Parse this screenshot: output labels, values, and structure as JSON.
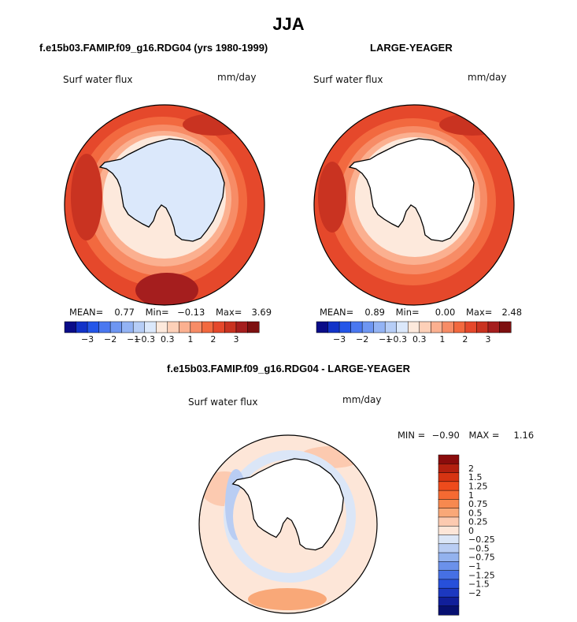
{
  "page": {
    "title": "JJA",
    "diff_title": "f.e15b03.FAMIP.f09_g16.RDG04 - LARGE-YEAGER"
  },
  "panels": [
    {
      "title": "f.e15b03.FAMIP.f09_g16.RDG04 (yrs 1980-1999)",
      "variable": "Surf water flux",
      "units": "mm/day",
      "mean_label": "MEAN=",
      "mean": "0.77",
      "min_label": "Min=",
      "min": "−0.13",
      "max_label": "Max=",
      "max": "3.69"
    },
    {
      "title": "LARGE-YEAGER",
      "variable": "Surf water flux",
      "units": "mm/day",
      "mean_label": "MEAN=",
      "mean": "0.89",
      "min_label": "Min=",
      "min": "0.00",
      "max_label": "Max=",
      "max": "2.48"
    }
  ],
  "diff_panel": {
    "variable": "Surf water flux",
    "units": "mm/day",
    "min_label": "MIN =",
    "min": "−0.90",
    "max_label": "MAX =",
    "max": "1.16"
  },
  "chart_data": [
    {
      "type": "heatmap",
      "projection": "south-polar-stereographic",
      "title": "f.e15b03.FAMIP.f09_g16.RDG04 (yrs 1980-1999)",
      "field": "Surf water flux",
      "units": "mm/day",
      "mean": 0.77,
      "min": -0.13,
      "max": 3.69,
      "colorbar": {
        "levels": [
          -3,
          -2.5,
          -2,
          -1.5,
          -1,
          -0.5,
          -0.3,
          -0.1,
          0.1,
          0.3,
          0.5,
          1,
          1.5,
          2,
          2.5,
          3
        ],
        "tick_labels": [
          "−3",
          "−2",
          "−1",
          "−0.3",
          "0.3",
          "1",
          "2",
          "3"
        ],
        "colors": [
          "#0a0c88",
          "#1233c8",
          "#2456e8",
          "#4a78f0",
          "#6e96f2",
          "#93b3f4",
          "#b6cdf6",
          "#dbe8fb",
          "#fde9dc",
          "#fdd0b8",
          "#fbb090",
          "#f78c66",
          "#f2693f",
          "#e5482b",
          "#c93321",
          "#a51e1e",
          "#7d1010"
        ]
      }
    },
    {
      "type": "heatmap",
      "projection": "south-polar-stereographic",
      "title": "LARGE-YEAGER",
      "field": "Surf water flux",
      "units": "mm/day",
      "mean": 0.89,
      "min": 0.0,
      "max": 2.48,
      "colorbar": {
        "levels": [
          -3,
          -2.5,
          -2,
          -1.5,
          -1,
          -0.5,
          -0.3,
          -0.1,
          0.1,
          0.3,
          0.5,
          1,
          1.5,
          2,
          2.5,
          3
        ],
        "tick_labels": [
          "−3",
          "−2",
          "−1",
          "−0.3",
          "0.3",
          "1",
          "2",
          "3"
        ],
        "colors": [
          "#0a0c88",
          "#1233c8",
          "#2456e8",
          "#4a78f0",
          "#6e96f2",
          "#93b3f4",
          "#b6cdf6",
          "#dbe8fb",
          "#fde9dc",
          "#fdd0b8",
          "#fbb090",
          "#f78c66",
          "#f2693f",
          "#e5482b",
          "#c93321",
          "#a51e1e",
          "#7d1010"
        ]
      }
    },
    {
      "type": "heatmap",
      "projection": "south-polar-stereographic",
      "title": "f.e15b03.FAMIP.f09_g16.RDG04 - LARGE-YEAGER",
      "field": "Surf water flux",
      "units": "mm/day",
      "min": -0.9,
      "max": 1.16,
      "colorbar": {
        "orientation": "vertical",
        "tick_labels": [
          "2",
          "1.5",
          "1.25",
          "1",
          "0.75",
          "0.5",
          "0.25",
          "0",
          "−0.25",
          "−0.5",
          "−0.75",
          "−1",
          "−1.25",
          "−1.5",
          "−2"
        ],
        "colors": [
          "#8a0c0c",
          "#b3200f",
          "#d63412",
          "#ee4b1c",
          "#f56a32",
          "#f7894f",
          "#f9a878",
          "#fccab0",
          "#fde6d8",
          "#dbe6f7",
          "#b9cdf3",
          "#93b2ee",
          "#6b91ea",
          "#4670e4",
          "#2750da",
          "#1c38c0",
          "#111f9a",
          "#071070"
        ]
      }
    }
  ]
}
